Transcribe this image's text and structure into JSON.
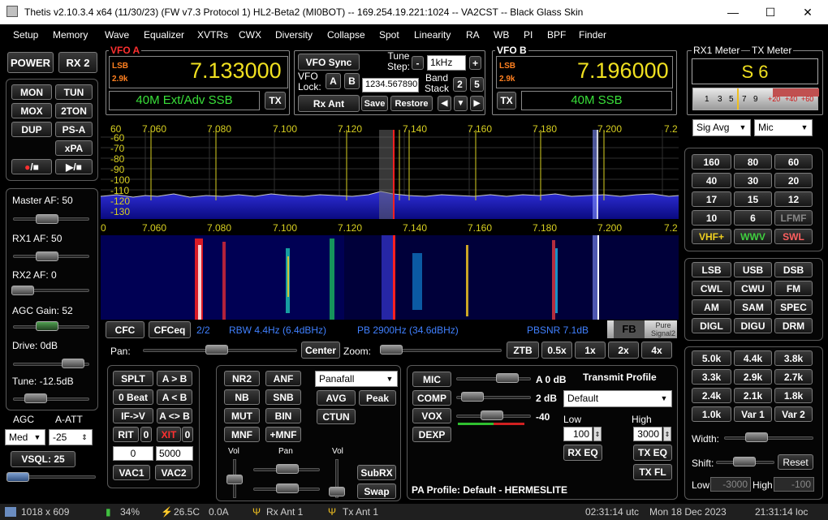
{
  "window": {
    "title": "Thetis v2.10.3.4 x64 (11/30/23) (FW v7.3 Protocol 1) HL2-Beta2 (MI0BOT)   --  169.254.19.221:1024   --   VA2CST   --   Black Glass Skin",
    "minimize": "—",
    "maximize": "☐",
    "close": "✕"
  },
  "menu": [
    "Setup",
    "Memory",
    "Wave",
    "Equalizer",
    "XVTRs",
    "CWX",
    "Diversity",
    "Collapse",
    "Spot",
    "Linearity",
    "RA",
    "WB",
    "PI",
    "BPF",
    "Finder"
  ],
  "left": {
    "power": "POWER",
    "rx2": "RX 2",
    "mon": "MON",
    "tun": "TUN",
    "mox": "MOX",
    "twoton": "2TON",
    "dup": "DUP",
    "psa": "PS-A",
    "xpa": "xPA",
    "rec": "●/■",
    "play": "▶/■",
    "master_af": "Master AF:  50",
    "rx1_af": "RX1 AF:  50",
    "rx2_af": "RX2 AF:  0",
    "agc_gain": "AGC Gain:  52",
    "drive": "Drive:  0dB",
    "tune": "Tune:  -12.5dB",
    "agc_label": "AGC",
    "aatt_label": "A-ATT",
    "agc_value": "Med",
    "aatt_value": "-25",
    "vsql": "VSQL: 25",
    "levels": {
      "master_af": 50,
      "rx1_af": 50,
      "rx2_af": 0,
      "agc_gain": 52
    }
  },
  "vfo_a": {
    "title": "VFO A",
    "mode": "LSB",
    "filter": "2.9k",
    "freq": "7.133000",
    "band": "40M Ext/Adv SSB",
    "tx": "TX"
  },
  "vfo_center": {
    "vfo_sync": "VFO Sync",
    "tune_step_label": "Tune Step:",
    "minus": "-",
    "tune_step": "1kHz",
    "plus": "+",
    "vfo_lock_label": "VFO Lock:",
    "lock_a": "A",
    "lock_b": "B",
    "lock_field": "1234.567890",
    "band_stack_label": "Band Stack",
    "bs2": "2",
    "bs5": "5",
    "rx_ant": "Rx Ant",
    "save": "Save",
    "restore": "Restore",
    "left": "◀",
    "down": "▼",
    "right": "▶"
  },
  "vfo_b": {
    "title": "VFO B",
    "mode": "LSB",
    "filter": "2.9k",
    "freq": "7.196000",
    "band": "40M SSB",
    "tx": "TX"
  },
  "meters": {
    "rx1_meter": "RX1 Meter",
    "tx_meter": "TX Meter",
    "s_reading": "S 6",
    "scale": [
      "1",
      "3",
      "5",
      "7",
      "9",
      "+20",
      "+40",
      "+60"
    ],
    "sig_avg": "Sig Avg",
    "mic": "Mic"
  },
  "bands": [
    "160",
    "80",
    "60",
    "40",
    "30",
    "20",
    "17",
    "15",
    "12",
    "10",
    "6",
    "LFMF",
    "VHF+",
    "WWV",
    "SWL"
  ],
  "band_colors": {
    "VHF+": "#f0d020",
    "WWV": "#40d040",
    "SWL": "#ff6060",
    "LFMF": "#888888"
  },
  "modes": [
    "LSB",
    "USB",
    "DSB",
    "CWL",
    "CWU",
    "FM",
    "AM",
    "SAM",
    "SPEC",
    "DIGL",
    "DIGU",
    "DRM"
  ],
  "filters": [
    "5.0k",
    "4.4k",
    "3.8k",
    "3.3k",
    "2.9k",
    "2.7k",
    "2.4k",
    "2.1k",
    "1.8k",
    "1.0k",
    "Var 1",
    "Var 2"
  ],
  "filter_panel": {
    "width": "Width:",
    "shift": "Shift:",
    "reset": "Reset",
    "low": "Low",
    "high": "High",
    "low_val": "-3000",
    "high_val": "-100"
  },
  "panadapter": {
    "freq_labels": [
      "7.060",
      "7.080",
      "7.100",
      "7.120",
      "7.140",
      "7.160",
      "7.180",
      "7.200",
      "7.2"
    ],
    "db_labels": [
      "60",
      "-60",
      "-70",
      "-80",
      "-90",
      "-100",
      "-110",
      "-120",
      "-130"
    ],
    "wf_freq_labels": [
      "0",
      "7.060",
      "7.080",
      "7.100",
      "7.120",
      "7.140",
      "7.160",
      "7.180",
      "7.200",
      "7.2"
    ]
  },
  "info_bar": {
    "cfc": "CFC",
    "cfceq": "CFCeq",
    "page": "2/2",
    "rbw": "RBW 4.4Hz (6.4dBHz)",
    "pb": "PB 2900Hz (34.6dBHz)",
    "pbsnr": "PBSNR 7.1dB",
    "fb": "FB",
    "pure_signal": "Pure Signal2"
  },
  "pan_zoom": {
    "pan": "Pan:",
    "center": "Center",
    "zoom": "Zoom:",
    "ztb": "ZTB",
    "z05": "0.5x",
    "z1": "1x",
    "z2": "2x",
    "z4": "4x"
  },
  "split_panel": {
    "split": "SPLT",
    "a_to_b": "A > B",
    "zero_beat": "0 Beat",
    "b_to_a": "A < B",
    "if_v": "IF->V",
    "swap_ab": "A <> B",
    "rit": "RIT",
    "rit_val": "0",
    "xit": "XIT",
    "xit_val": "0",
    "rit_field": "0",
    "xit_field": "5000",
    "vac1": "VAC1",
    "vac2": "VAC2"
  },
  "dsp_panel": {
    "nr2": "NR2",
    "anf": "ANF",
    "nb": "NB",
    "snb": "SNB",
    "mut": "MUT",
    "bin": "BIN",
    "mnf": "MNF",
    "pmnf": "+MNF",
    "display_mode": "Panafall",
    "avg": "AVG",
    "peak": "Peak",
    "ctun": "CTUN",
    "vol": "Vol",
    "pan": "Pan",
    "vol2": "Vol",
    "subrx": "SubRX",
    "swap": "Swap"
  },
  "tx_panel": {
    "mic": "MIC",
    "mic_val": "A 0 dB",
    "comp": "COMP",
    "comp_val": "2 dB",
    "vox": "VOX",
    "vox_val": "-40",
    "dexp": "DEXP",
    "transmit_profile": "Transmit Profile",
    "profile": "Default",
    "low": "Low",
    "high": "High",
    "low_val": "100",
    "high_val": "3000",
    "rx_eq": "RX EQ",
    "tx_eq": "TX EQ",
    "tx_fl": "TX FL",
    "pa_profile": "PA Profile: Default - HERMESLITE"
  },
  "status": {
    "size": "1018 x 609",
    "cpu": "34%",
    "volt": "26.5C",
    "amp": "0.0A",
    "rx_ant": "Rx Ant 1",
    "tx_ant": "Tx Ant 1",
    "utc": "02:31:14 utc",
    "date": "Mon 18 Dec 2023",
    "loc": "21:31:14 loc"
  }
}
